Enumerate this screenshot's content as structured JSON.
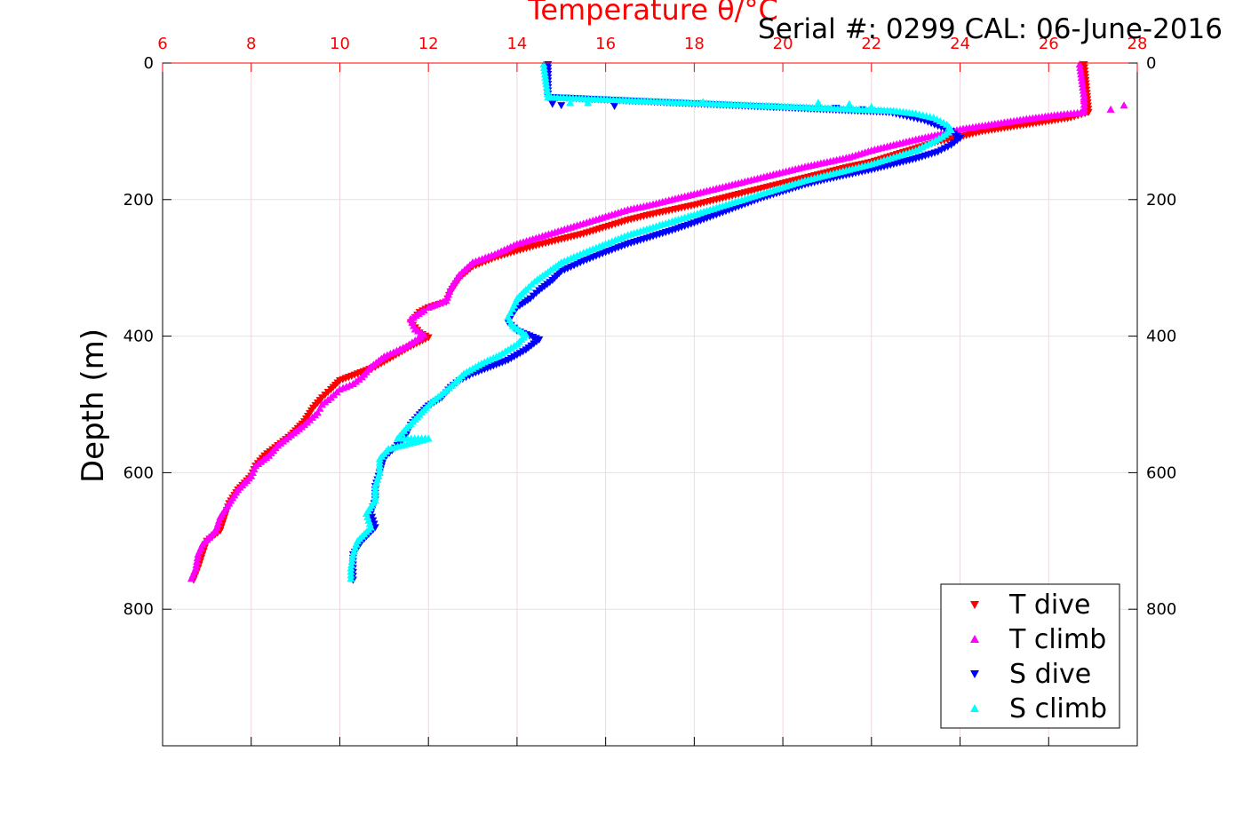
{
  "chart_data": {
    "type": "scatter",
    "title": "Temperature θ/°C",
    "subtitle": "Serial #: 0299 CAL: 06-June-2016",
    "ylabel": "Depth (m)",
    "xlim": [
      6,
      28
    ],
    "ylim": [
      0,
      1000
    ],
    "y_inverted": true,
    "x_axis_position": "top",
    "x_ticks": [
      6,
      8,
      10,
      12,
      14,
      16,
      18,
      20,
      22,
      24,
      26,
      28
    ],
    "y_ticks": [
      0,
      200,
      400,
      600,
      800
    ],
    "grid": true,
    "legend_position": "bottom-right",
    "series": [
      {
        "name": "T dive",
        "marker": "triangle-down",
        "color": "#ff0000",
        "points": [
          [
            26.8,
            2
          ],
          [
            26.8,
            60
          ],
          [
            26.9,
            72
          ],
          [
            26.5,
            80
          ],
          [
            26.0,
            85
          ],
          [
            25.5,
            90
          ],
          [
            25.0,
            95
          ],
          [
            24.5,
            100
          ],
          [
            24.0,
            108
          ],
          [
            23.5,
            115
          ],
          [
            23.0,
            125
          ],
          [
            22.5,
            135
          ],
          [
            22.0,
            145
          ],
          [
            21.5,
            152
          ],
          [
            21.0,
            160
          ],
          [
            20.5,
            168
          ],
          [
            20.0,
            176
          ],
          [
            19.5,
            184
          ],
          [
            19.0,
            192
          ],
          [
            18.5,
            200
          ],
          [
            18.0,
            208
          ],
          [
            17.5,
            215
          ],
          [
            17.0,
            222
          ],
          [
            16.5,
            230
          ],
          [
            16.0,
            240
          ],
          [
            15.5,
            250
          ],
          [
            15.0,
            258
          ],
          [
            14.5,
            266
          ],
          [
            14.0,
            275
          ],
          [
            13.5,
            285
          ],
          [
            13.0,
            298
          ],
          [
            12.7,
            315
          ],
          [
            12.5,
            335
          ],
          [
            12.4,
            350
          ],
          [
            12.0,
            358
          ],
          [
            11.8,
            365
          ],
          [
            11.6,
            380
          ],
          [
            11.8,
            395
          ],
          [
            12.0,
            402
          ],
          [
            11.6,
            415
          ],
          [
            11.2,
            430
          ],
          [
            10.8,
            445
          ],
          [
            10.4,
            455
          ],
          [
            10.0,
            465
          ],
          [
            9.8,
            478
          ],
          [
            9.6,
            490
          ],
          [
            9.4,
            505
          ],
          [
            9.2,
            525
          ],
          [
            8.9,
            545
          ],
          [
            8.6,
            560
          ],
          [
            8.3,
            575
          ],
          [
            8.1,
            590
          ],
          [
            8.0,
            605
          ],
          [
            7.7,
            625
          ],
          [
            7.5,
            645
          ],
          [
            7.4,
            665
          ],
          [
            7.3,
            685
          ],
          [
            7.0,
            700
          ],
          [
            6.9,
            720
          ],
          [
            6.8,
            740
          ],
          [
            6.7,
            757
          ]
        ]
      },
      {
        "name": "T climb",
        "marker": "triangle-up",
        "color": "#ff00ff",
        "points": [
          [
            26.7,
            2
          ],
          [
            26.8,
            50
          ],
          [
            27.7,
            62
          ],
          [
            27.4,
            68
          ],
          [
            26.8,
            72
          ],
          [
            26.2,
            76
          ],
          [
            25.5,
            82
          ],
          [
            25.0,
            87
          ],
          [
            24.5,
            92
          ],
          [
            24.0,
            97
          ],
          [
            23.5,
            105
          ],
          [
            23.0,
            112
          ],
          [
            22.5,
            120
          ],
          [
            22.0,
            128
          ],
          [
            21.5,
            138
          ],
          [
            21.0,
            145
          ],
          [
            20.5,
            152
          ],
          [
            20.0,
            160
          ],
          [
            19.5,
            168
          ],
          [
            19.0,
            176
          ],
          [
            18.5,
            184
          ],
          [
            18.0,
            192
          ],
          [
            17.5,
            200
          ],
          [
            17.0,
            208
          ],
          [
            16.5,
            215
          ],
          [
            16.0,
            225
          ],
          [
            15.5,
            235
          ],
          [
            15.0,
            245
          ],
          [
            14.5,
            255
          ],
          [
            14.0,
            265
          ],
          [
            13.5,
            280
          ],
          [
            13.0,
            292
          ],
          [
            12.7,
            310
          ],
          [
            12.5,
            330
          ],
          [
            12.4,
            348
          ],
          [
            12.0,
            358
          ],
          [
            11.9,
            362
          ],
          [
            11.6,
            375
          ],
          [
            11.7,
            390
          ],
          [
            11.9,
            398
          ],
          [
            11.5,
            415
          ],
          [
            11.0,
            430
          ],
          [
            10.7,
            445
          ],
          [
            10.5,
            460
          ],
          [
            10.3,
            470
          ],
          [
            10.0,
            478
          ],
          [
            9.8,
            490
          ],
          [
            9.6,
            500
          ],
          [
            9.5,
            512
          ],
          [
            9.2,
            530
          ],
          [
            8.9,
            545
          ],
          [
            8.6,
            560
          ],
          [
            8.4,
            575
          ],
          [
            8.1,
            590
          ],
          [
            8.0,
            605
          ],
          [
            7.7,
            625
          ],
          [
            7.5,
            645
          ],
          [
            7.3,
            665
          ],
          [
            7.2,
            685
          ],
          [
            6.9,
            705
          ],
          [
            6.8,
            720
          ],
          [
            6.75,
            740
          ],
          [
            6.65,
            755
          ]
        ]
      },
      {
        "name": "S dive",
        "marker": "triangle-down",
        "color": "#0000ff",
        "points": [
          [
            14.7,
            2
          ],
          [
            14.7,
            50
          ],
          [
            14.8,
            60
          ],
          [
            15.0,
            62
          ],
          [
            16.2,
            63
          ],
          [
            19.8,
            64
          ],
          [
            21.2,
            66
          ],
          [
            21.8,
            68
          ],
          [
            22.4,
            72
          ],
          [
            22.8,
            78
          ],
          [
            23.2,
            84
          ],
          [
            23.5,
            92
          ],
          [
            23.8,
            100
          ],
          [
            24.0,
            110
          ],
          [
            23.8,
            120
          ],
          [
            23.5,
            130
          ],
          [
            23.0,
            140
          ],
          [
            22.5,
            148
          ],
          [
            22.0,
            156
          ],
          [
            21.5,
            163
          ],
          [
            21.0,
            170
          ],
          [
            20.5,
            178
          ],
          [
            20.0,
            188
          ],
          [
            19.5,
            198
          ],
          [
            19.0,
            210
          ],
          [
            18.5,
            222
          ],
          [
            18.0,
            234
          ],
          [
            17.5,
            245
          ],
          [
            17.0,
            255
          ],
          [
            16.5,
            265
          ],
          [
            16.0,
            277
          ],
          [
            15.5,
            290
          ],
          [
            15.0,
            305
          ],
          [
            14.8,
            318
          ],
          [
            14.5,
            333
          ],
          [
            14.3,
            345
          ],
          [
            14.0,
            358
          ],
          [
            13.9,
            368
          ],
          [
            13.8,
            380
          ],
          [
            14.0,
            392
          ],
          [
            14.5,
            405
          ],
          [
            14.2,
            420
          ],
          [
            13.8,
            435
          ],
          [
            13.4,
            445
          ],
          [
            13.0,
            455
          ],
          [
            12.7,
            465
          ],
          [
            12.5,
            475
          ],
          [
            12.3,
            490
          ],
          [
            12.0,
            502
          ],
          [
            11.8,
            515
          ],
          [
            11.6,
            530
          ],
          [
            11.5,
            545
          ],
          [
            11.3,
            560
          ],
          [
            11.0,
            578
          ],
          [
            10.9,
            600
          ],
          [
            10.8,
            620
          ],
          [
            10.8,
            640
          ],
          [
            10.7,
            660
          ],
          [
            10.8,
            680
          ],
          [
            10.5,
            700
          ],
          [
            10.3,
            720
          ],
          [
            10.3,
            740
          ],
          [
            10.3,
            757
          ]
        ]
      },
      {
        "name": "S climb",
        "marker": "triangle-up",
        "color": "#00ffff",
        "points": [
          [
            14.6,
            2
          ],
          [
            14.7,
            50
          ],
          [
            15.2,
            58
          ],
          [
            15.6,
            58
          ],
          [
            18.2,
            57
          ],
          [
            20.8,
            58
          ],
          [
            21.5,
            60
          ],
          [
            22.0,
            64
          ],
          [
            22.5,
            70
          ],
          [
            23.0,
            74
          ],
          [
            23.4,
            80
          ],
          [
            23.7,
            90
          ],
          [
            23.8,
            98
          ],
          [
            23.6,
            108
          ],
          [
            23.3,
            118
          ],
          [
            23.0,
            128
          ],
          [
            22.5,
            138
          ],
          [
            22.0,
            148
          ],
          [
            21.5,
            156
          ],
          [
            21.0,
            164
          ],
          [
            20.5,
            172
          ],
          [
            20.0,
            182
          ],
          [
            19.5,
            192
          ],
          [
            19.0,
            202
          ],
          [
            18.5,
            212
          ],
          [
            18.0,
            222
          ],
          [
            17.5,
            232
          ],
          [
            17.0,
            242
          ],
          [
            16.5,
            252
          ],
          [
            16.0,
            265
          ],
          [
            15.5,
            278
          ],
          [
            15.0,
            292
          ],
          [
            14.7,
            306
          ],
          [
            14.4,
            320
          ],
          [
            14.2,
            332
          ],
          [
            14.0,
            345
          ],
          [
            13.9,
            360
          ],
          [
            13.8,
            372
          ],
          [
            13.9,
            385
          ],
          [
            14.2,
            398
          ],
          [
            14.0,
            412
          ],
          [
            13.6,
            428
          ],
          [
            13.2,
            440
          ],
          [
            12.8,
            455
          ],
          [
            12.6,
            468
          ],
          [
            12.4,
            480
          ],
          [
            12.1,
            495
          ],
          [
            11.9,
            508
          ],
          [
            11.7,
            522
          ],
          [
            11.5,
            535
          ],
          [
            11.3,
            550
          ],
          [
            12.0,
            550
          ],
          [
            11.1,
            565
          ],
          [
            10.9,
            580
          ],
          [
            10.9,
            600
          ],
          [
            10.8,
            620
          ],
          [
            10.8,
            640
          ],
          [
            10.6,
            660
          ],
          [
            10.7,
            680
          ],
          [
            10.4,
            700
          ],
          [
            10.3,
            720
          ],
          [
            10.25,
            740
          ],
          [
            10.25,
            755
          ]
        ]
      }
    ]
  }
}
